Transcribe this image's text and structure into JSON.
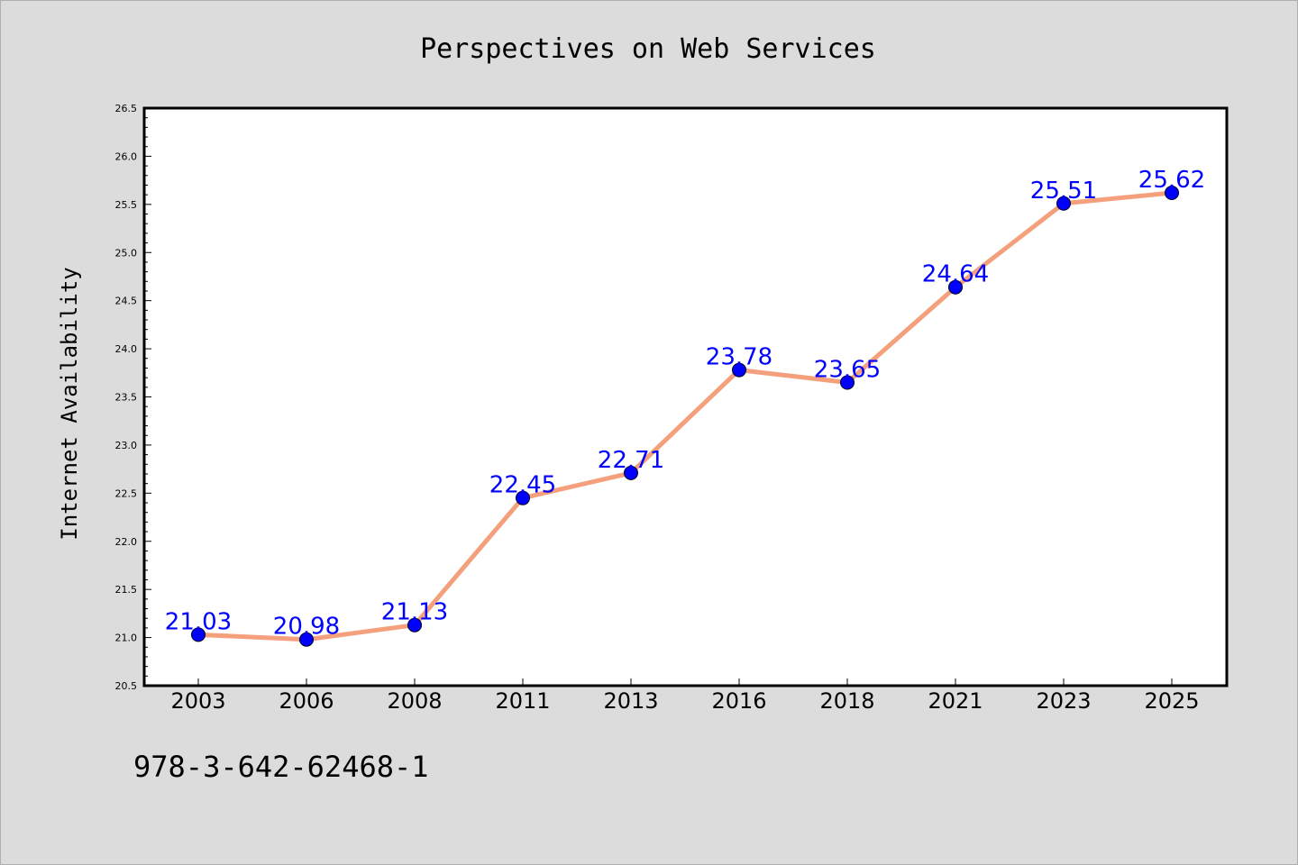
{
  "chart_data": {
    "type": "line",
    "title": "Perspectives on Web Services",
    "xlabel": "",
    "ylabel": "Internet Availability",
    "categories": [
      "2003",
      "2006",
      "2008",
      "2011",
      "2013",
      "2016",
      "2018",
      "2021",
      "2023",
      "2025"
    ],
    "series": [
      {
        "values": [
          21.03,
          20.98,
          21.13,
          22.45,
          22.71,
          23.78,
          23.65,
          24.64,
          25.51,
          25.62
        ],
        "labels": [
          "21.03",
          "20.98",
          "21.13",
          "22.45",
          "22.71",
          "23.78",
          "23.65",
          "24.64",
          "25.51",
          "25.62"
        ]
      }
    ],
    "ylim": [
      20.5,
      26.5
    ],
    "yticks": [
      "20.5",
      "21.0",
      "21.5",
      "22.0",
      "22.5",
      "23.0",
      "23.5",
      "24.0",
      "24.5",
      "25.0",
      "25.5",
      "26.0",
      "26.5"
    ],
    "grid": false,
    "legend": "none",
    "colors": {
      "line": "#f4a07c",
      "marker": "#0000ff",
      "label": "#0000ff",
      "background": "#dcdcdc",
      "plot_background": "#ffffff"
    }
  },
  "footer": {
    "isbn": "978-3-642-62468-1"
  }
}
